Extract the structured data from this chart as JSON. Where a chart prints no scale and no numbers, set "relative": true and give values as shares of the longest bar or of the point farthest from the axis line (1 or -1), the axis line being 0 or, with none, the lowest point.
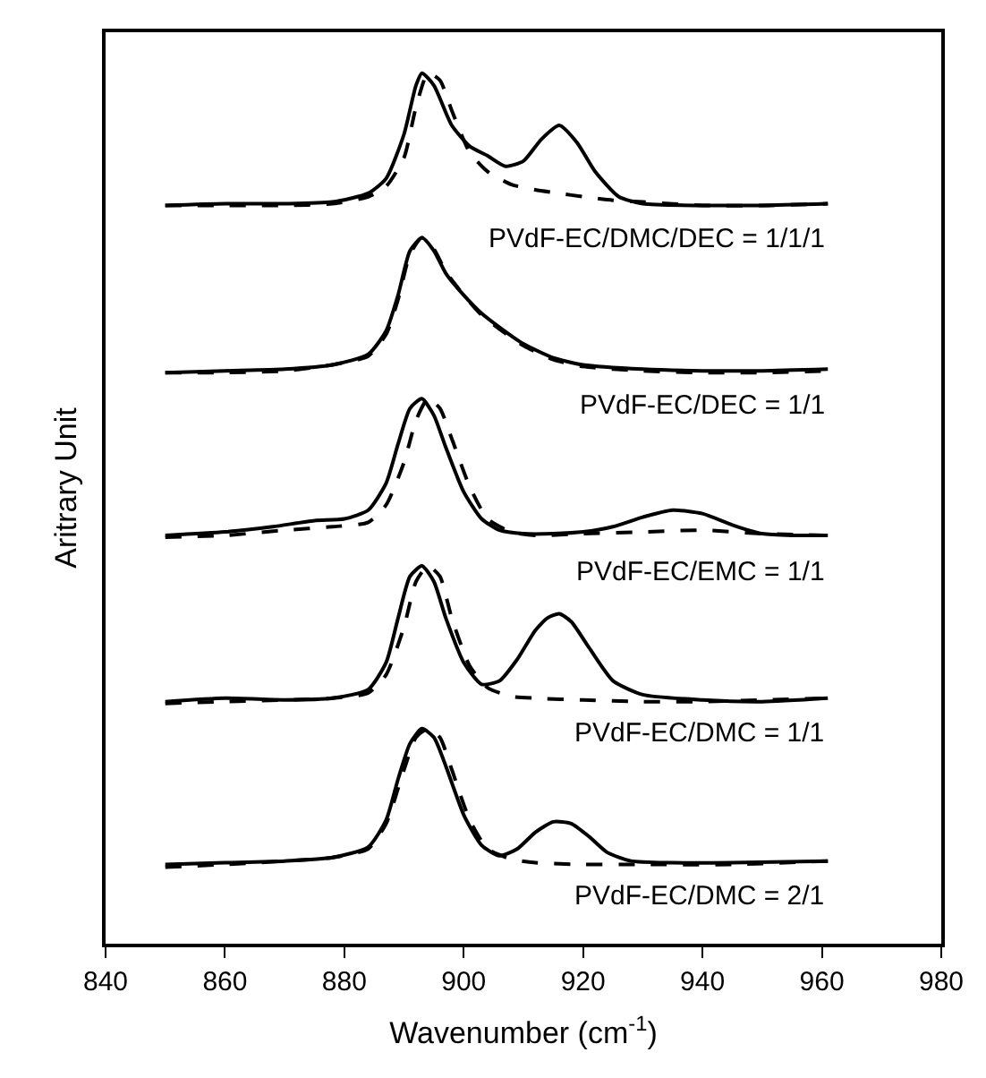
{
  "chart_data": {
    "type": "line",
    "relative": true,
    "xlabel": "Wavenumber (cm$^{-1}$)",
    "ylabel": "Aritrary Unit",
    "xlim": [
      840,
      980
    ],
    "xticks": [
      840,
      860,
      880,
      900,
      920,
      940,
      960,
      980
    ],
    "legend": false,
    "marker": "none",
    "series": [
      {
        "name": "PVdF-EC/DMC/DEC = 1/1/1",
        "color": "#000000",
        "line_style": "solid",
        "x": [
          850,
          860,
          870,
          878,
          884,
          887,
          890,
          892,
          893,
          895,
          898,
          901,
          904,
          907,
          910,
          913,
          916,
          919,
          922,
          926,
          930,
          940,
          950,
          961
        ],
        "values": [
          0.848,
          0.85,
          0.85,
          0.852,
          0.862,
          0.879,
          0.93,
          0.986,
          1.0,
          0.986,
          0.94,
          0.916,
          0.905,
          0.893,
          0.899,
          0.924,
          0.94,
          0.92,
          0.887,
          0.858,
          0.85,
          0.848,
          0.848,
          0.85
        ]
      },
      {
        "color": "#000000",
        "line_style": "dashed",
        "x": [
          850,
          860,
          870,
          878,
          884,
          887,
          890,
          892,
          894,
          896,
          898,
          901,
          904,
          908,
          912,
          916,
          920,
          925,
          930,
          940,
          950,
          961
        ],
        "values": [
          0.848,
          0.848,
          0.848,
          0.85,
          0.858,
          0.87,
          0.903,
          0.961,
          1.0,
          0.992,
          0.957,
          0.909,
          0.887,
          0.872,
          0.866,
          0.862,
          0.858,
          0.854,
          0.852,
          0.848,
          0.848,
          0.85
        ]
      },
      {
        "name": "PVdF-EC/DEC = 1/1",
        "color": "#000000",
        "line_style": "solid",
        "x": [
          850,
          860,
          870,
          878,
          884,
          887,
          889,
          891,
          893,
          895,
          897,
          900,
          903,
          906,
          910,
          915,
          920,
          930,
          940,
          950,
          961
        ],
        "values": [
          0.656,
          0.658,
          0.66,
          0.665,
          0.677,
          0.704,
          0.745,
          0.796,
          0.811,
          0.796,
          0.77,
          0.745,
          0.724,
          0.708,
          0.689,
          0.673,
          0.665,
          0.66,
          0.658,
          0.658,
          0.66
        ]
      },
      {
        "color": "#000000",
        "line_style": "dashed",
        "x": [
          850,
          860,
          870,
          878,
          884,
          887,
          889,
          891,
          893,
          895,
          897,
          900,
          903,
          906,
          910,
          915,
          920,
          930,
          940,
          950,
          961
        ],
        "values": [
          0.656,
          0.656,
          0.658,
          0.665,
          0.675,
          0.7,
          0.74,
          0.792,
          0.811,
          0.798,
          0.772,
          0.745,
          0.722,
          0.706,
          0.687,
          0.671,
          0.663,
          0.658,
          0.656,
          0.656,
          0.658
        ]
      },
      {
        "name": "PVdF-EC/EMC = 1/1",
        "color": "#000000",
        "line_style": "solid",
        "x": [
          850,
          860,
          868,
          875,
          880,
          884,
          887,
          889,
          891,
          893,
          895,
          897,
          900,
          903,
          906,
          910,
          915,
          920,
          925,
          930,
          935,
          940,
          945,
          950,
          955,
          961
        ],
        "values": [
          0.469,
          0.473,
          0.479,
          0.486,
          0.488,
          0.498,
          0.529,
          0.574,
          0.615,
          0.626,
          0.607,
          0.57,
          0.519,
          0.488,
          0.475,
          0.471,
          0.471,
          0.473,
          0.479,
          0.49,
          0.498,
          0.494,
          0.481,
          0.471,
          0.469,
          0.469
        ]
      },
      {
        "color": "#000000",
        "line_style": "dashed",
        "x": [
          850,
          860,
          870,
          878,
          884,
          887,
          890,
          892,
          894,
          896,
          898,
          901,
          904,
          908,
          912,
          920,
          930,
          940,
          950,
          961
        ],
        "values": [
          0.467,
          0.469,
          0.475,
          0.479,
          0.484,
          0.504,
          0.553,
          0.601,
          0.626,
          0.615,
          0.58,
          0.525,
          0.488,
          0.473,
          0.469,
          0.471,
          0.473,
          0.475,
          0.471,
          0.469
        ]
      },
      {
        "name": "PVdF-EC/DMC = 1/1",
        "color": "#000000",
        "line_style": "solid",
        "x": [
          850,
          860,
          870,
          878,
          884,
          887,
          889,
          891,
          893,
          895,
          897,
          900,
          903,
          906,
          909,
          912,
          914,
          916,
          918,
          921,
          925,
          930,
          940,
          950,
          961
        ],
        "values": [
          0.278,
          0.282,
          0.28,
          0.282,
          0.292,
          0.323,
          0.374,
          0.422,
          0.434,
          0.416,
          0.374,
          0.323,
          0.298,
          0.302,
          0.327,
          0.36,
          0.374,
          0.379,
          0.37,
          0.34,
          0.302,
          0.286,
          0.28,
          0.278,
          0.282
        ]
      },
      {
        "color": "#000000",
        "line_style": "dashed",
        "x": [
          850,
          860,
          870,
          878,
          884,
          887,
          890,
          892,
          894,
          896,
          898,
          901,
          904,
          908,
          912,
          920,
          930,
          940,
          950,
          961
        ],
        "values": [
          0.276,
          0.278,
          0.28,
          0.282,
          0.288,
          0.309,
          0.364,
          0.416,
          0.434,
          0.422,
          0.374,
          0.319,
          0.294,
          0.284,
          0.282,
          0.28,
          0.278,
          0.278,
          0.28,
          0.282
        ]
      },
      {
        "name": "PVdF-EC/DMC = 2/1",
        "color": "#000000",
        "line_style": "solid",
        "x": [
          850,
          860,
          870,
          878,
          884,
          887,
          889,
          891,
          893,
          895,
          897,
          900,
          903,
          906,
          909,
          912,
          915,
          918,
          921,
          924,
          928,
          935,
          945,
          961
        ],
        "values": [
          0.091,
          0.093,
          0.095,
          0.099,
          0.111,
          0.142,
          0.189,
          0.23,
          0.247,
          0.237,
          0.204,
          0.148,
          0.113,
          0.101,
          0.109,
          0.128,
          0.14,
          0.138,
          0.123,
          0.105,
          0.095,
          0.093,
          0.093,
          0.095
        ]
      },
      {
        "color": "#000000",
        "line_style": "dashed",
        "x": [
          850,
          860,
          870,
          878,
          884,
          887,
          890,
          892,
          894,
          896,
          898,
          901,
          904,
          908,
          912,
          920,
          930,
          945,
          961
        ],
        "values": [
          0.088,
          0.091,
          0.095,
          0.099,
          0.109,
          0.138,
          0.2,
          0.237,
          0.247,
          0.237,
          0.2,
          0.142,
          0.109,
          0.097,
          0.093,
          0.091,
          0.091,
          0.091,
          0.095
        ]
      }
    ]
  }
}
